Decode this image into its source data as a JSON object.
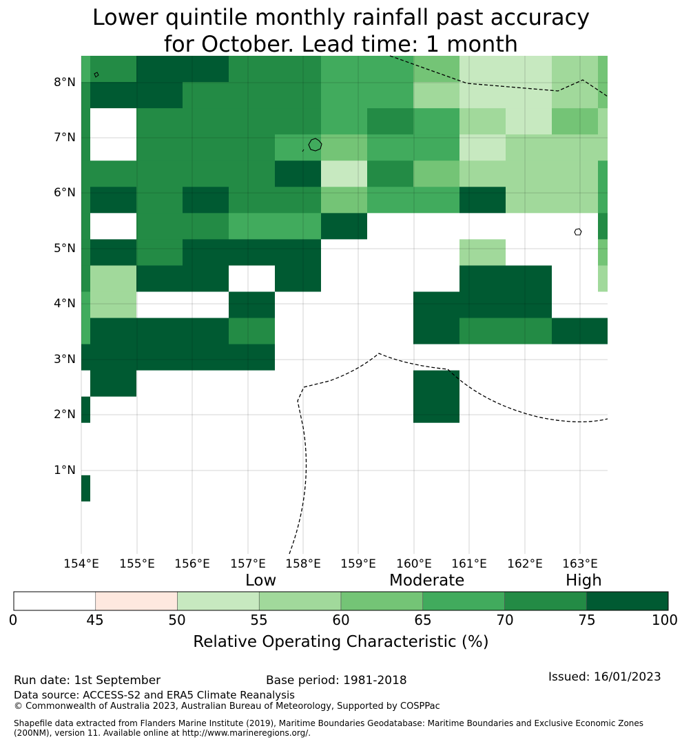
{
  "title": {
    "line1": "Lower quintile monthly rainfall past accuracy",
    "line2": "for October. Lead time: 1 month"
  },
  "map": {
    "lat_labels": [
      "8°N",
      "7°N",
      "6°N",
      "5°N",
      "4°N",
      "3°N",
      "2°N",
      "1°N"
    ],
    "lon_labels": [
      "154°E",
      "155°E",
      "156°E",
      "157°E",
      "158°E",
      "159°E",
      "160°E",
      "161°E",
      "162°E",
      "163°E"
    ],
    "grid_rows": [
      "56776655422344",
      "67766655322344",
      "68666656532434",
      "68666545523333",
      "66666726433355",
      "67676645573350",
      "68665578888863",
      "67677788838843",
      "63778788877838",
      "53887888777887",
      "57776888766777",
      "77777888888888",
      "87888888788888",
      "78888888788888",
      "88888888888888",
      "88888888888888",
      "78888888888888",
      "88888888888888",
      "88888888888888"
    ]
  },
  "legend": {
    "qualitative": [
      "Low",
      "Moderate",
      "High"
    ],
    "ticks": [
      "0",
      "45",
      "50",
      "55",
      "60",
      "65",
      "70",
      "75",
      "100"
    ],
    "colors": [
      "#ffffff",
      "#fee8df",
      "#c7e9c0",
      "#a1d99b",
      "#74c476",
      "#41ab5d",
      "#238b45",
      "#005a32"
    ],
    "label": "Relative Operating Characteristic (%)"
  },
  "footer": {
    "run_date": "Run date: 1st September",
    "base_period": "Base period: 1981-2018",
    "issued": "Issued: 16/01/2023",
    "data_source": "Data source: ACCESS-S2 and ERA5 Climate Reanalysis",
    "copyright": "© Commonwealth of Australia 2023, Australian Bureau of Meteorology, Supported by COSPPac",
    "shapefile_line1": "Shapefile data extracted from Flanders Marine Institute (2019), Maritime Boundaries Geodatabase: Maritime Boundaries and Exclusive Economic Zones",
    "shapefile_line2": "(200NM), version 11. Available online at http://www.marineregions.org/."
  }
}
